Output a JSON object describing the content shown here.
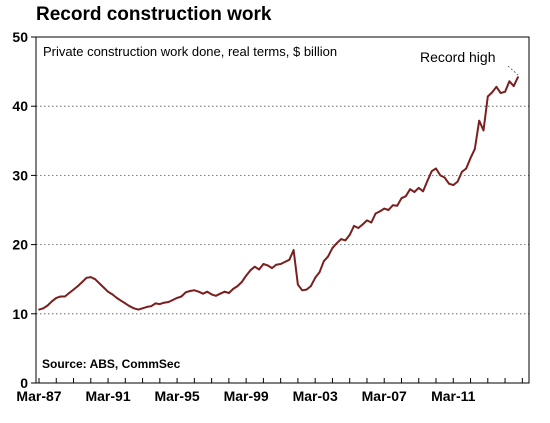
{
  "chart_data": {
    "type": "line",
    "title": "Record construction work",
    "subtitle": "Private construction work done, real terms, $ billion",
    "source": "Source: ABS, CommSec",
    "annotation": "Record high",
    "xlabel": "",
    "ylabel": "",
    "x_ticks": [
      "Mar-87",
      "Mar-91",
      "Mar-95",
      "Mar-99",
      "Mar-03",
      "Mar-07",
      "Mar-11"
    ],
    "x_range": [
      "Mar-87",
      "Jun-13"
    ],
    "ylim": [
      0,
      50
    ],
    "y_ticks": [
      0,
      10,
      20,
      30,
      40,
      50
    ],
    "grid": "horizontal dotted",
    "line_color": "#7a1f1f",
    "series": [
      {
        "values": [
          [
            "Mar-87",
            10.6
          ],
          [
            "Jun-87",
            10.8
          ],
          [
            "Sep-87",
            11.2
          ],
          [
            "Dec-87",
            11.8
          ],
          [
            "Mar-88",
            12.3
          ],
          [
            "Jun-88",
            12.5
          ],
          [
            "Sep-88",
            12.5
          ],
          [
            "Dec-88",
            13.0
          ],
          [
            "Mar-89",
            13.5
          ],
          [
            "Jun-89",
            14.0
          ],
          [
            "Sep-89",
            14.6
          ],
          [
            "Dec-89",
            15.2
          ],
          [
            "Mar-90",
            15.3
          ],
          [
            "Jun-90",
            15.0
          ],
          [
            "Sep-90",
            14.4
          ],
          [
            "Dec-90",
            13.8
          ],
          [
            "Mar-91",
            13.2
          ],
          [
            "Jun-91",
            12.8
          ],
          [
            "Sep-91",
            12.3
          ],
          [
            "Dec-91",
            11.9
          ],
          [
            "Mar-92",
            11.5
          ],
          [
            "Jun-92",
            11.1
          ],
          [
            "Sep-92",
            10.8
          ],
          [
            "Dec-92",
            10.6
          ],
          [
            "Mar-93",
            10.8
          ],
          [
            "Jun-93",
            11.0
          ],
          [
            "Sep-93",
            11.1
          ],
          [
            "Dec-93",
            11.5
          ],
          [
            "Mar-94",
            11.4
          ],
          [
            "Jun-94",
            11.6
          ],
          [
            "Sep-94",
            11.7
          ],
          [
            "Dec-94",
            12.0
          ],
          [
            "Mar-95",
            12.3
          ],
          [
            "Jun-95",
            12.5
          ],
          [
            "Sep-95",
            13.1
          ],
          [
            "Dec-95",
            13.3
          ],
          [
            "Mar-96",
            13.4
          ],
          [
            "Jun-96",
            13.2
          ],
          [
            "Sep-96",
            12.9
          ],
          [
            "Dec-96",
            13.2
          ],
          [
            "Mar-97",
            12.8
          ],
          [
            "Jun-97",
            12.6
          ],
          [
            "Sep-97",
            12.9
          ],
          [
            "Dec-97",
            13.2
          ],
          [
            "Mar-98",
            13.0
          ],
          [
            "Jun-98",
            13.6
          ],
          [
            "Sep-98",
            14.0
          ],
          [
            "Dec-98",
            14.6
          ],
          [
            "Mar-99",
            15.5
          ],
          [
            "Jun-99",
            16.3
          ],
          [
            "Sep-99",
            16.8
          ],
          [
            "Dec-99",
            16.4
          ],
          [
            "Mar-00",
            17.2
          ],
          [
            "Jun-00",
            17.0
          ],
          [
            "Sep-00",
            16.6
          ],
          [
            "Dec-00",
            17.1
          ],
          [
            "Mar-01",
            17.2
          ],
          [
            "Jun-01",
            17.5
          ],
          [
            "Sep-01",
            17.8
          ],
          [
            "Dec-01",
            19.2
          ],
          [
            "Mar-02",
            14.2
          ],
          [
            "Jun-02",
            13.4
          ],
          [
            "Sep-02",
            13.5
          ],
          [
            "Dec-02",
            14.0
          ],
          [
            "Mar-03",
            15.2
          ],
          [
            "Jun-03",
            16.0
          ],
          [
            "Sep-03",
            17.6
          ],
          [
            "Dec-03",
            18.3
          ],
          [
            "Mar-04",
            19.5
          ],
          [
            "Jun-04",
            20.2
          ],
          [
            "Sep-04",
            20.8
          ],
          [
            "Dec-04",
            20.6
          ],
          [
            "Mar-05",
            21.4
          ],
          [
            "Jun-05",
            22.7
          ],
          [
            "Sep-05",
            22.4
          ],
          [
            "Dec-05",
            22.9
          ],
          [
            "Mar-06",
            23.5
          ],
          [
            "Jun-06",
            23.2
          ],
          [
            "Sep-06",
            24.5
          ],
          [
            "Dec-06",
            24.8
          ],
          [
            "Mar-07",
            25.2
          ],
          [
            "Jun-07",
            25.0
          ],
          [
            "Sep-07",
            25.7
          ],
          [
            "Dec-07",
            25.6
          ],
          [
            "Mar-08",
            26.7
          ],
          [
            "Jun-08",
            27.0
          ],
          [
            "Sep-08",
            28.0
          ],
          [
            "Dec-08",
            27.6
          ],
          [
            "Mar-09",
            28.2
          ],
          [
            "Jun-09",
            27.7
          ],
          [
            "Sep-09",
            29.2
          ],
          [
            "Dec-09",
            30.6
          ],
          [
            "Mar-10",
            31.0
          ],
          [
            "Jun-10",
            30.0
          ],
          [
            "Sep-10",
            29.7
          ],
          [
            "Dec-10",
            28.8
          ],
          [
            "Mar-11",
            28.6
          ],
          [
            "Jun-11",
            29.1
          ],
          [
            "Sep-11",
            30.5
          ],
          [
            "Dec-11",
            31.0
          ],
          [
            "Mar-12",
            32.5
          ],
          [
            "Jun-12",
            33.8
          ],
          [
            "Sep-12",
            37.9
          ],
          [
            "Dec-12",
            36.5
          ],
          [
            "Mar-13",
            41.4
          ],
          [
            "Jun-13",
            42.0
          ],
          [
            "Sep-13",
            42.8
          ],
          [
            "Dec-13",
            41.9
          ],
          [
            "Mar-14",
            42.1
          ],
          [
            "Jun-14",
            43.6
          ],
          [
            "Sep-14",
            42.9
          ],
          [
            "Dec-14",
            44.2
          ]
        ]
      }
    ]
  }
}
